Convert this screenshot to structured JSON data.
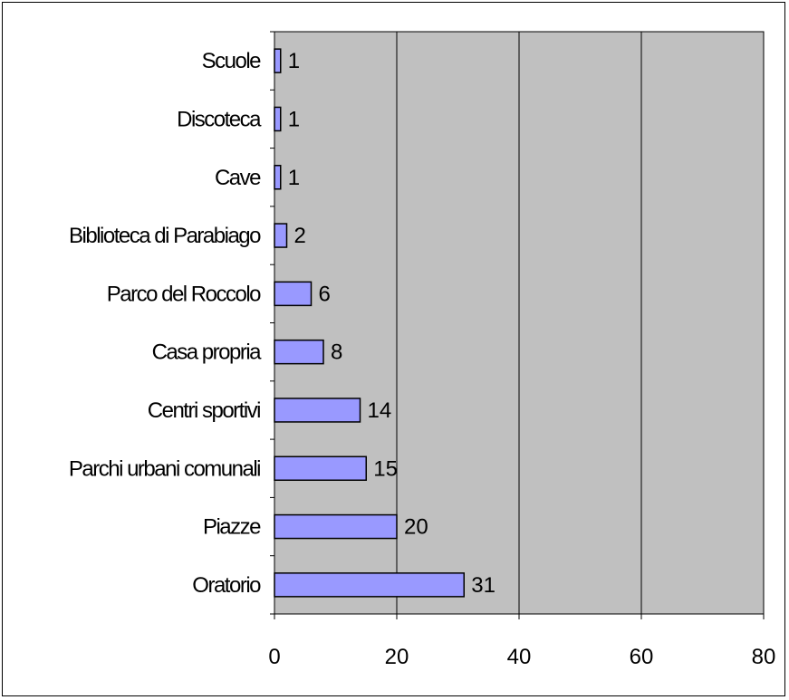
{
  "chart_data": {
    "type": "bar",
    "orientation": "horizontal",
    "categories": [
      "Scuole",
      "Discoteca",
      "Cave",
      "Biblioteca di Parabiago",
      "Parco del Roccolo",
      "Casa propria",
      "Centri sportivi",
      "Parchi urbani comunali",
      "Piazze",
      "Oratorio"
    ],
    "values": [
      1,
      1,
      1,
      2,
      6,
      8,
      14,
      15,
      20,
      31
    ],
    "xlim": [
      0,
      80
    ],
    "xticks": [
      0,
      20,
      40,
      60,
      80
    ],
    "title": "",
    "xlabel": "",
    "ylabel": "",
    "grid": "vertical",
    "legend": "none",
    "data_labels": true,
    "colors": {
      "bar_fill": "#9999ff",
      "bar_stroke": "#000000",
      "plot_background": "#c0c0c0",
      "gridline": "#000000",
      "frame": "#000000"
    }
  }
}
